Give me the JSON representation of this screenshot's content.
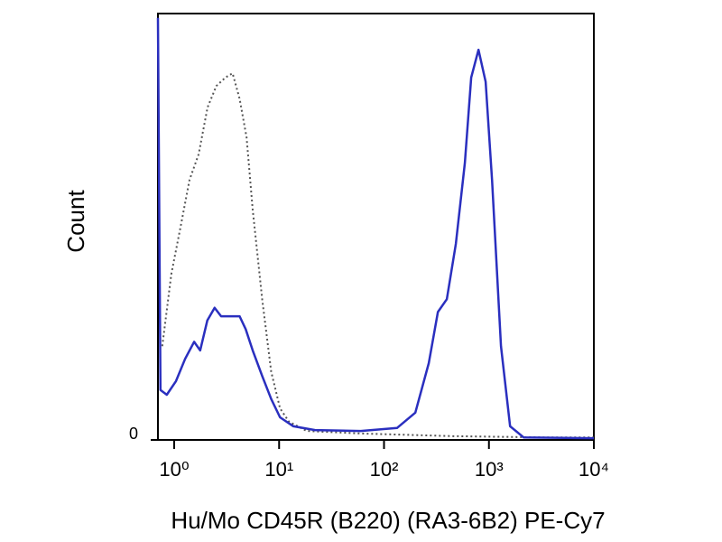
{
  "chart_data": {
    "type": "line",
    "x_label": "Hu/Mo CD45R (B220) (RA3-6B2) PE-Cy7",
    "y_label": "Count",
    "xscale": "log",
    "xlim": [
      0.7,
      10000
    ],
    "ylim": [
      0,
      100
    ],
    "xticks": [
      {
        "value": 1,
        "label": "10⁰"
      },
      {
        "value": 10,
        "label": "10¹"
      },
      {
        "value": 100,
        "label": "10²"
      },
      {
        "value": 1000,
        "label": "10³"
      },
      {
        "value": 10000,
        "label": "10⁴"
      }
    ],
    "yticks": [
      0
    ],
    "series": [
      {
        "color": "#555555",
        "dash": true,
        "x": [
          0.77,
          0.94,
          1.15,
          1.4,
          1.71,
          2.08,
          2.52,
          3.08,
          3.6,
          4.2,
          4.9,
          5.6,
          6.9,
          8.4,
          10.2,
          12.4,
          18.3,
          61,
          440,
          3150,
          10000
        ],
        "values": [
          22,
          39,
          50,
          61,
          67,
          78,
          83,
          85,
          86,
          80,
          71,
          54,
          33,
          16,
          7.4,
          4.3,
          2.1,
          1.5,
          0.9,
          0.6,
          0.6
        ]
      },
      {
        "color": "#2a2fbf",
        "dash": false,
        "x": [
          0.7,
          0.74,
          0.85,
          1.04,
          1.27,
          1.55,
          1.77,
          2.07,
          2.43,
          2.8,
          3.4,
          4.2,
          4.8,
          5.6,
          6.9,
          8.4,
          10.2,
          13.7,
          22,
          60,
          133,
          199,
          267,
          326,
          397,
          484,
          590,
          678,
          795,
          931,
          1070,
          1303,
          1590,
          2140,
          10000
        ],
        "values": [
          99,
          11.7,
          10.6,
          13.8,
          19,
          23,
          21,
          28,
          31,
          29,
          29,
          29,
          26,
          21,
          15,
          9.6,
          5.3,
          3.2,
          2.3,
          2.1,
          2.8,
          6.4,
          18,
          30,
          33,
          46,
          65,
          85,
          91.5,
          84,
          61,
          22,
          3.2,
          0.6,
          0.4
        ]
      }
    ]
  }
}
